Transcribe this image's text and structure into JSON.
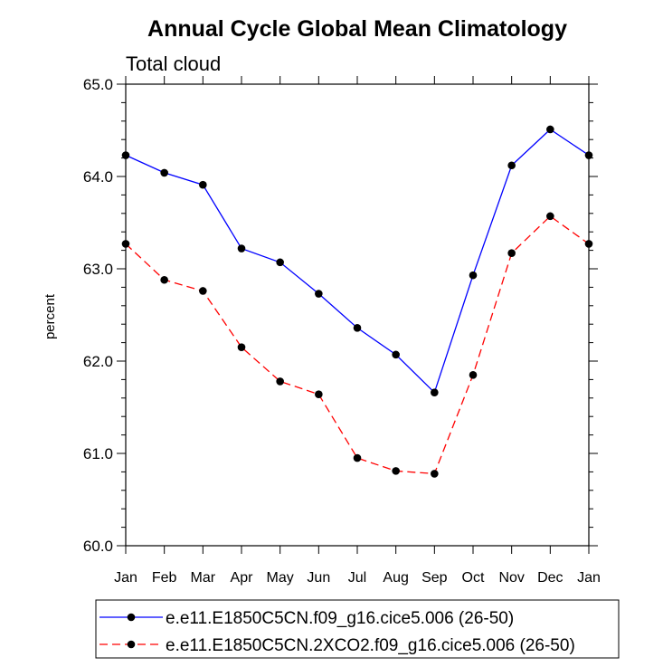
{
  "chart_data": {
    "type": "line",
    "title": "Annual Cycle Global Mean Climatology",
    "subtitle": "Total cloud",
    "xlabel": "",
    "ylabel": "percent",
    "ylim": [
      60.0,
      65.0
    ],
    "yticks": [
      "60.0",
      "61.0",
      "62.0",
      "63.0",
      "64.0",
      "65.0"
    ],
    "categories": [
      "Jan",
      "Feb",
      "Mar",
      "Apr",
      "May",
      "Jun",
      "Jul",
      "Aug",
      "Sep",
      "Oct",
      "Nov",
      "Dec",
      "Jan"
    ],
    "grid": false,
    "legend_position": "bottom",
    "series": [
      {
        "name": "e.e11.E1850C5CN.f09_g16.cice5.006 (26-50)",
        "color": "#0000ff",
        "style": "solid",
        "values": [
          64.23,
          64.04,
          63.91,
          63.22,
          63.07,
          62.73,
          62.36,
          62.07,
          61.66,
          62.93,
          64.12,
          64.51,
          64.23
        ]
      },
      {
        "name": "e.e11.E1850C5CN.2XCO2.f09_g16.cice5.006 (26-50)",
        "color": "#ff0000",
        "style": "dashed",
        "values": [
          63.27,
          62.88,
          62.76,
          62.15,
          61.78,
          61.64,
          60.95,
          60.81,
          60.78,
          61.85,
          63.17,
          63.57,
          63.27
        ]
      }
    ]
  }
}
